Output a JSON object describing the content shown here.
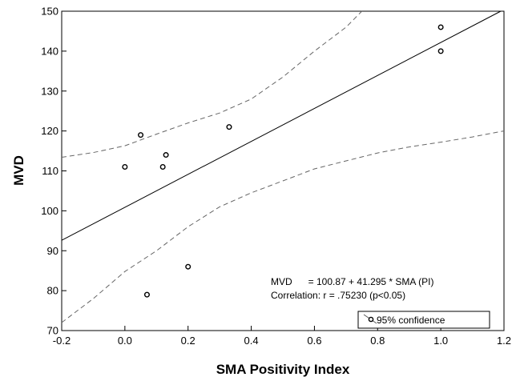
{
  "chart_data": {
    "type": "scatter",
    "xlabel": "SMA Positivity Index",
    "ylabel": "MVD",
    "xlim": [
      -0.2,
      1.2
    ],
    "ylim": [
      70,
      150
    ],
    "x_ticks": [
      "-0.2",
      "0.0",
      "0.2",
      "0.4",
      "0.6",
      "0.8",
      "1.0",
      "1.2"
    ],
    "y_ticks": [
      "70",
      "80",
      "90",
      "100",
      "110",
      "120",
      "130",
      "140",
      "150"
    ],
    "grid": false,
    "points": [
      {
        "x": 0.0,
        "y": 111
      },
      {
        "x": 0.05,
        "y": 119
      },
      {
        "x": 0.07,
        "y": 79
      },
      {
        "x": 0.12,
        "y": 111
      },
      {
        "x": 0.13,
        "y": 114
      },
      {
        "x": 0.2,
        "y": 86
      },
      {
        "x": 0.33,
        "y": 121
      },
      {
        "x": 1.0,
        "y": 146
      },
      {
        "x": 1.0,
        "y": 140
      }
    ],
    "regression": {
      "intercept": 100.87,
      "slope": 41.295
    },
    "confidence_upper": [
      {
        "x": -0.2,
        "y": 113.4
      },
      {
        "x": -0.1,
        "y": 114.6
      },
      {
        "x": 0.0,
        "y": 116.3
      },
      {
        "x": 0.1,
        "y": 119.2
      },
      {
        "x": 0.2,
        "y": 122.0
      },
      {
        "x": 0.3,
        "y": 124.5
      },
      {
        "x": 0.4,
        "y": 128.0
      },
      {
        "x": 0.5,
        "y": 133.5
      },
      {
        "x": 0.6,
        "y": 140.0
      },
      {
        "x": 0.7,
        "y": 146.0
      },
      {
        "x": 0.75,
        "y": 150.0
      }
    ],
    "confidence_lower": [
      {
        "x": -0.2,
        "y": 72.0
      },
      {
        "x": -0.1,
        "y": 78.0
      },
      {
        "x": 0.0,
        "y": 84.8
      },
      {
        "x": 0.1,
        "y": 90.0
      },
      {
        "x": 0.2,
        "y": 96.0
      },
      {
        "x": 0.3,
        "y": 101.0
      },
      {
        "x": 0.4,
        "y": 104.5
      },
      {
        "x": 0.5,
        "y": 107.5
      },
      {
        "x": 0.6,
        "y": 110.5
      },
      {
        "x": 0.7,
        "y": 112.5
      },
      {
        "x": 0.8,
        "y": 114.5
      },
      {
        "x": 0.9,
        "y": 116.0
      },
      {
        "x": 1.0,
        "y": 117.2
      },
      {
        "x": 1.1,
        "y": 118.5
      },
      {
        "x": 1.2,
        "y": 120.0
      }
    ],
    "annotation_line1": "MVD      = 100.87 + 41.295 * SMA (PI)",
    "annotation_line2": "Correlation: r = .75230 (p<0.05)",
    "legend": {
      "label": "95% confidence",
      "placement": "bottom-right"
    }
  }
}
